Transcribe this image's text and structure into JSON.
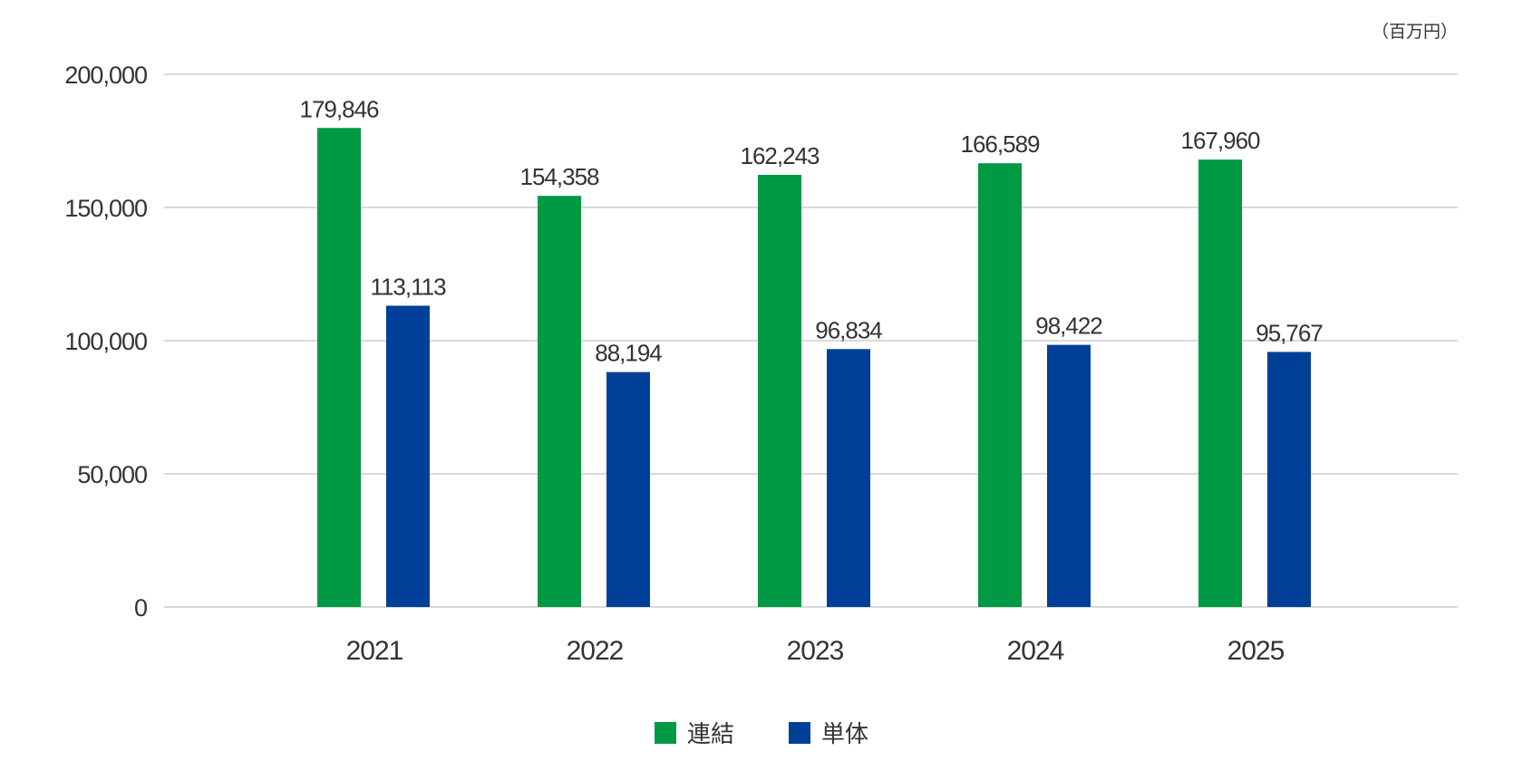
{
  "unit_label": "（百万円）",
  "chart_data": {
    "type": "bar",
    "categories": [
      "2021",
      "2022",
      "2023",
      "2024",
      "2025"
    ],
    "series": [
      {
        "name": "連結",
        "color": "#009944",
        "values": [
          179846,
          154358,
          162243,
          166589,
          167960
        ]
      },
      {
        "name": "単体",
        "color": "#003f98",
        "values": [
          113113,
          88194,
          96834,
          98422,
          95767
        ]
      }
    ],
    "ylim": [
      0,
      200000
    ],
    "yticks": [
      0,
      50000,
      100000,
      150000,
      200000
    ],
    "grid": true,
    "legend": "bottom-center",
    "data_labels": true
  }
}
